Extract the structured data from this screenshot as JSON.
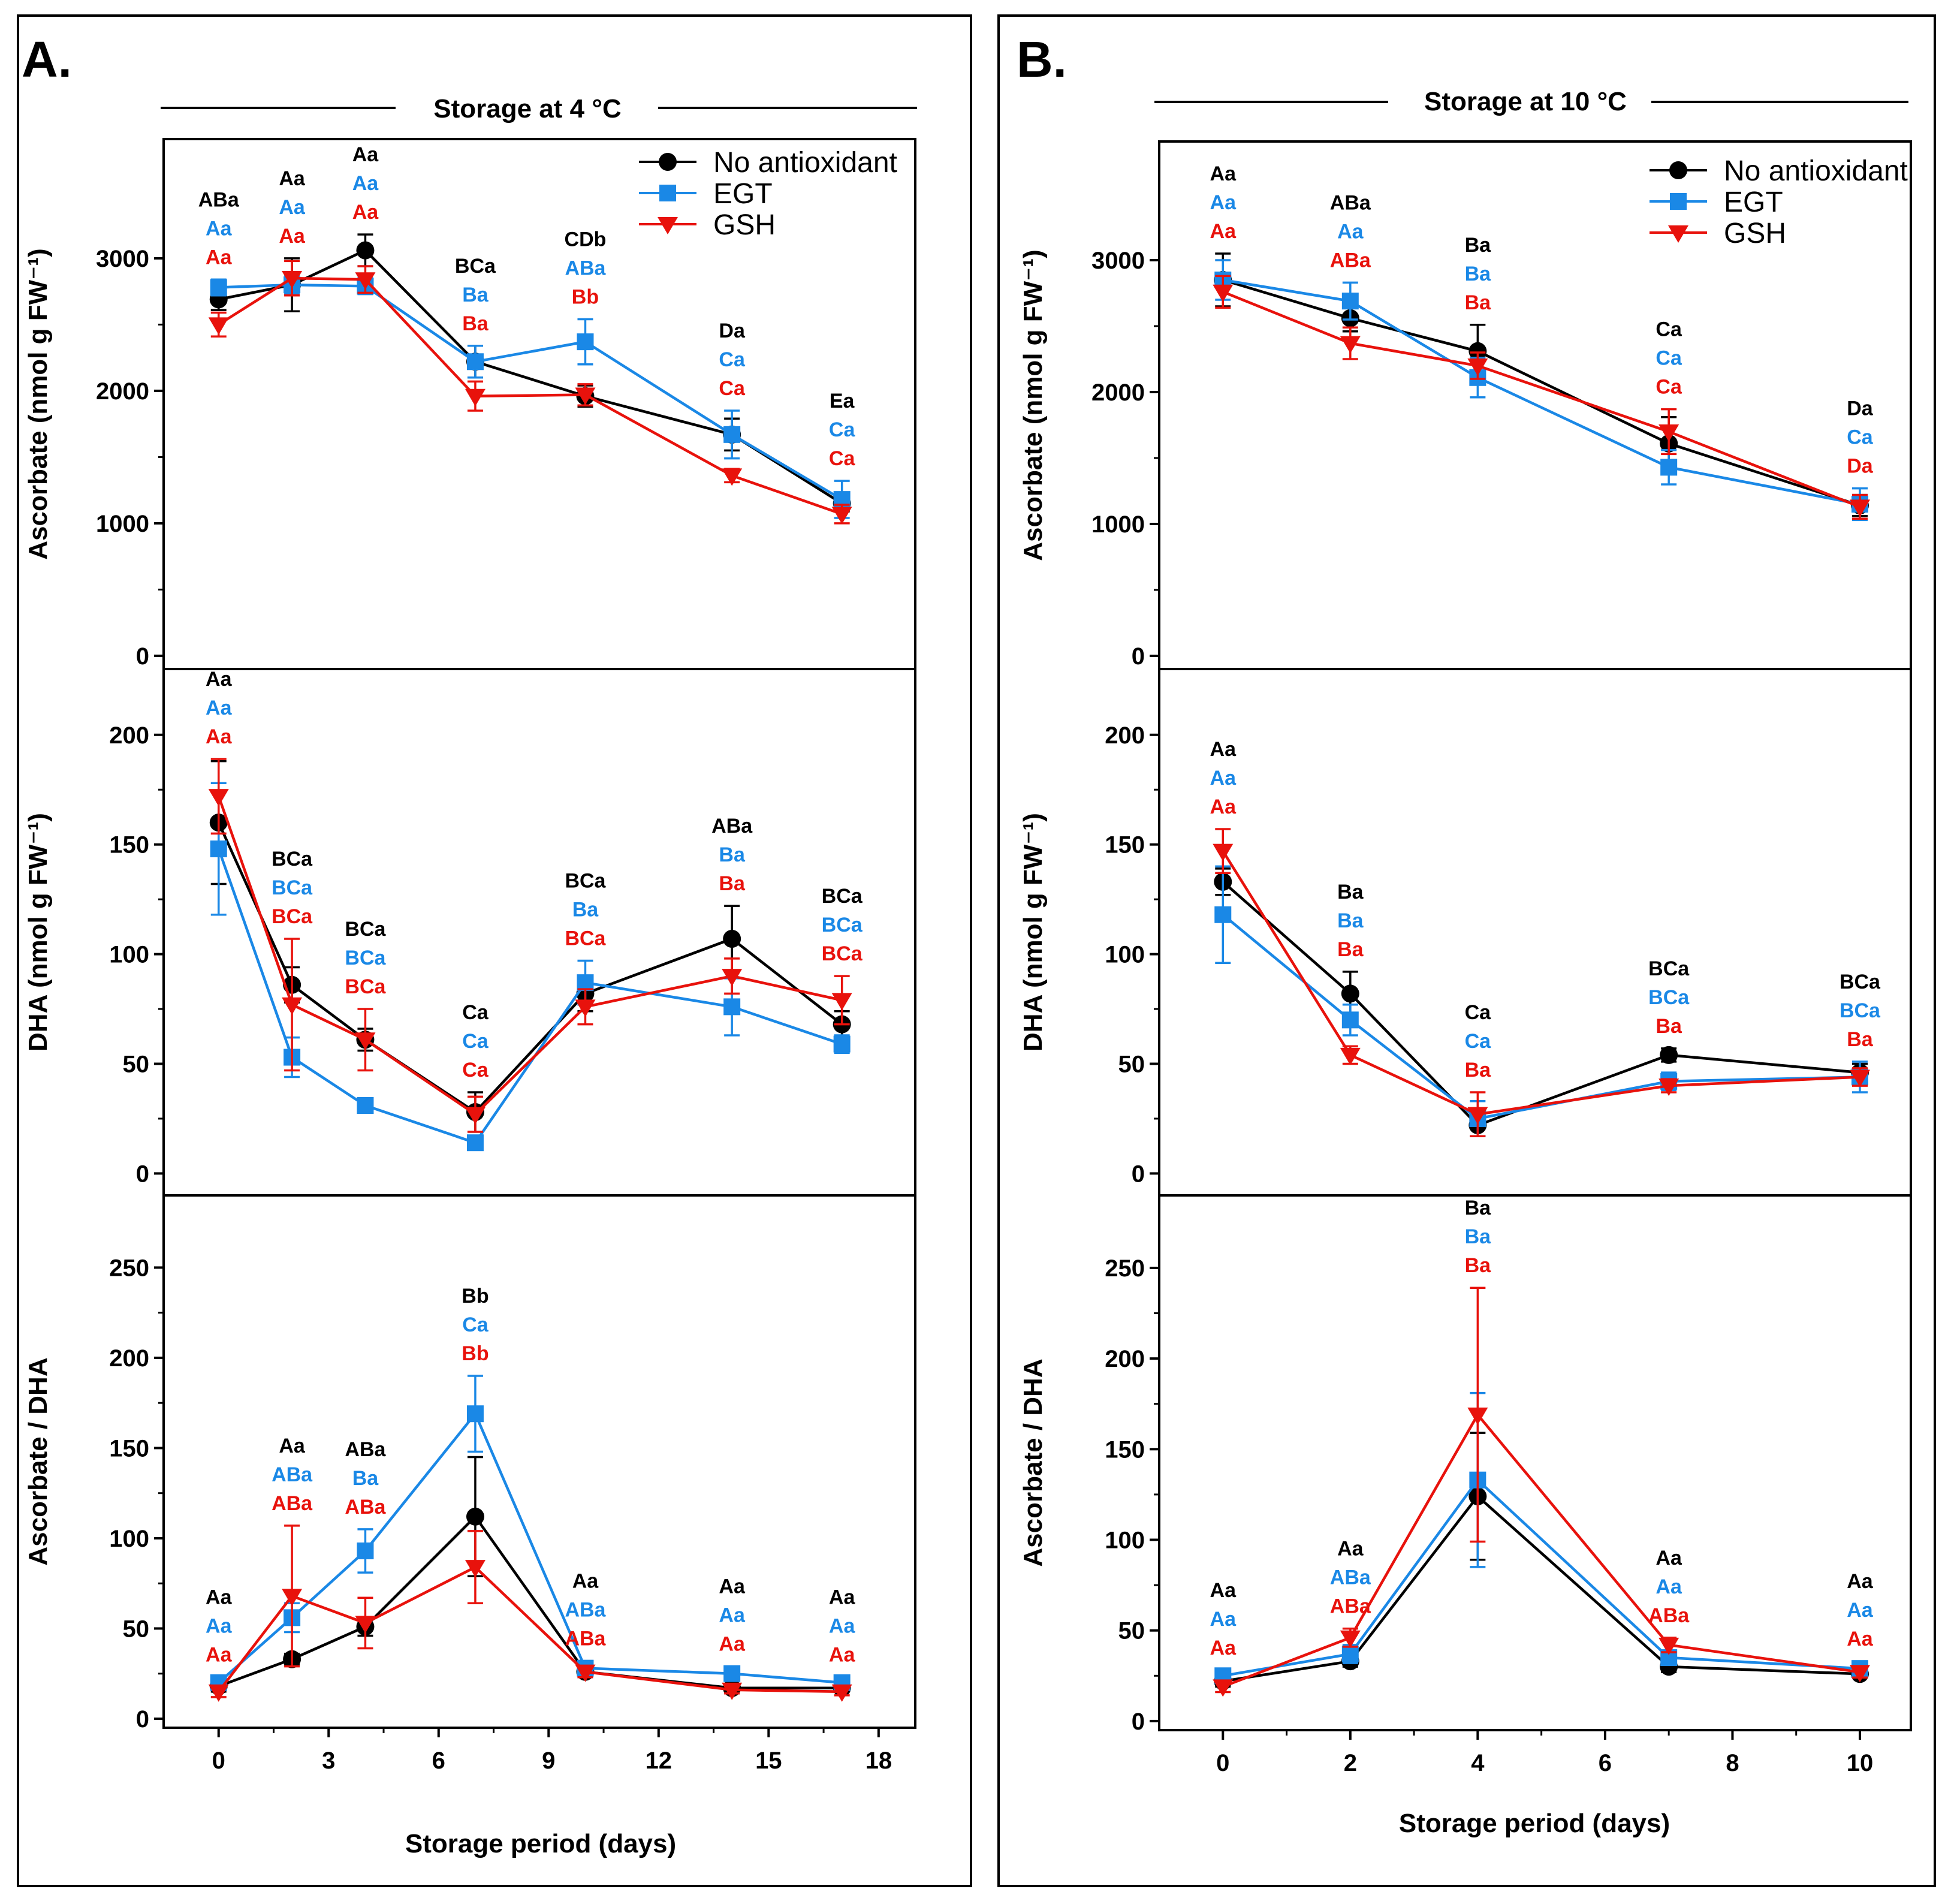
{
  "figure": {
    "colors": {
      "no_antioxidant": "#000000",
      "egt": "#1a88e6",
      "gsh": "#e8120c"
    }
  },
  "panels": [
    {
      "id": "A",
      "letter": "A.",
      "storage_title": "Storage at 4 °C",
      "xlabel": "Storage period (days)",
      "xlim": [
        -1.5,
        19.0
      ],
      "xticks": [
        0,
        3,
        6,
        9,
        12,
        15,
        18
      ],
      "x_tick_labels": [
        "0",
        "3",
        "6",
        "9",
        "12",
        "15",
        "18"
      ],
      "legend": [
        "No antioxidant",
        "EGT",
        "GSH"
      ]
    },
    {
      "id": "B",
      "letter": "B.",
      "storage_title": "Storage at 10 °C",
      "xlabel": "Storage period (days)",
      "xlim": [
        -1.0,
        10.8
      ],
      "xticks": [
        0,
        2,
        4,
        6,
        8,
        10
      ],
      "x_tick_labels": [
        "0",
        "2",
        "4",
        "6",
        "8",
        "10"
      ],
      "legend": [
        "No antioxidant",
        "EGT",
        "GSH"
      ]
    }
  ],
  "chart_data": [
    {
      "type": "line",
      "panel": "A",
      "row": 0,
      "title": "Storage at 4 °C",
      "ylabel": "Ascorbate (nmol g FW⁻¹)",
      "xlabel": "",
      "ylim": [
        -100,
        3900
      ],
      "yticks": [
        0,
        1000,
        2000,
        3000
      ],
      "y_tick_labels": [
        "0",
        "1000",
        "2000",
        "3000"
      ],
      "x": [
        0,
        2,
        4,
        7,
        10,
        14,
        17
      ],
      "series": [
        {
          "name": "No antioxidant",
          "values": [
            2690,
            2800,
            3060,
            2220,
            1960,
            1670,
            1150
          ],
          "errors": [
            80,
            200,
            120,
            120,
            80,
            120,
            60
          ]
        },
        {
          "name": "EGT",
          "values": [
            2780,
            2800,
            2790,
            2220,
            2370,
            1670,
            1180
          ],
          "errors": [
            60,
            70,
            60,
            120,
            170,
            180,
            140
          ]
        },
        {
          "name": "GSH",
          "values": [
            2500,
            2850,
            2840,
            1960,
            1970,
            1360,
            1070
          ],
          "errors": [
            90,
            130,
            100,
            110,
            80,
            50,
            70
          ]
        }
      ],
      "letters": [
        [
          "ABa",
          "Aa",
          "Aa"
        ],
        [
          "Aa",
          "Aa",
          "Aa"
        ],
        [
          "Aa",
          "Aa",
          "Aa"
        ],
        [
          "BCa",
          "Ba",
          "Ba"
        ],
        [
          "CDb",
          "ABa",
          "Bb"
        ],
        [
          "Da",
          "Ca",
          "Ca"
        ],
        [
          "Ea",
          "Ca",
          "Ca"
        ]
      ]
    },
    {
      "type": "line",
      "panel": "A",
      "row": 1,
      "ylabel": "DHA  (nmol g FW⁻¹)",
      "xlabel": "",
      "ylim": [
        -10,
        230
      ],
      "yticks": [
        0,
        50,
        100,
        150,
        200
      ],
      "y_tick_labels": [
        "0",
        "50",
        "100",
        "150",
        "200"
      ],
      "x": [
        0,
        2,
        4,
        7,
        10,
        14,
        17
      ],
      "series": [
        {
          "name": "No antioxidant",
          "values": [
            160,
            86,
            61,
            28,
            82,
            107,
            68
          ],
          "errors": [
            28,
            8,
            5,
            9,
            8,
            15,
            6
          ]
        },
        {
          "name": "EGT",
          "values": [
            148,
            53,
            31,
            14,
            87,
            76,
            59
          ],
          "errors": [
            30,
            9,
            3,
            3,
            10,
            13,
            4
          ]
        },
        {
          "name": "GSH",
          "values": [
            172,
            77,
            61,
            27,
            76,
            90,
            79
          ],
          "errors": [
            17,
            30,
            14,
            8,
            8,
            8,
            11
          ]
        }
      ],
      "letters": [
        [
          "Aa",
          "Aa",
          "Aa"
        ],
        [
          "BCa",
          "BCa",
          "BCa"
        ],
        [
          "BCa",
          "BCa",
          "BCa"
        ],
        [
          "Ca",
          "Ca",
          "Ca"
        ],
        [
          "BCa",
          "Ba",
          "BCa"
        ],
        [
          "ABa",
          "Ba",
          "Ba"
        ],
        [
          "BCa",
          "BCa",
          "BCa"
        ]
      ]
    },
    {
      "type": "line",
      "panel": "A",
      "row": 2,
      "ylabel": "Ascorbate / DHA",
      "xlabel": "Storage period (days)",
      "ylim": [
        -5,
        290
      ],
      "yticks": [
        0,
        50,
        100,
        150,
        200,
        250
      ],
      "y_tick_labels": [
        "0",
        "50",
        "100",
        "150",
        "200",
        "250"
      ],
      "x": [
        0,
        2,
        4,
        7,
        10,
        14,
        17
      ],
      "series": [
        {
          "name": "No antioxidant",
          "values": [
            18,
            33,
            51,
            112,
            26,
            17,
            17
          ],
          "errors": [
            3,
            3,
            5,
            33,
            3,
            2,
            2
          ]
        },
        {
          "name": "EGT",
          "values": [
            20,
            56,
            93,
            169,
            28,
            25,
            20
          ],
          "errors": [
            3,
            8,
            12,
            21,
            4,
            4,
            3
          ]
        },
        {
          "name": "GSH",
          "values": [
            15,
            68,
            53,
            84,
            26,
            16,
            15
          ],
          "errors": [
            3,
            39,
            14,
            20,
            3,
            2,
            2
          ]
        }
      ],
      "letters": [
        [
          "Aa",
          "Aa",
          "Aa"
        ],
        [
          "Aa",
          "ABa",
          "ABa"
        ],
        [
          "ABa",
          "Ba",
          "ABa"
        ],
        [
          "Bb",
          "Ca",
          "Bb"
        ],
        [
          "Aa",
          "ABa",
          "ABa"
        ],
        [
          "Aa",
          "Aa",
          "Aa"
        ],
        [
          "Aa",
          "Aa",
          "Aa"
        ]
      ]
    },
    {
      "type": "line",
      "panel": "B",
      "row": 0,
      "title": "Storage at 10 °C",
      "ylabel": "Ascorbate (nmol g FW⁻¹)",
      "xlabel": "",
      "ylim": [
        -100,
        3900
      ],
      "yticks": [
        0,
        1000,
        2000,
        3000
      ],
      "y_tick_labels": [
        "0",
        "1000",
        "2000",
        "3000"
      ],
      "x": [
        0,
        2,
        4,
        7,
        10
      ],
      "series": [
        {
          "name": "No antioxidant",
          "values": [
            2850,
            2560,
            2310,
            1610,
            1140
          ],
          "errors": [
            200,
            100,
            200,
            200,
            80
          ]
        },
        {
          "name": "EGT",
          "values": [
            2850,
            2690,
            2110,
            1430,
            1150
          ],
          "errors": [
            150,
            140,
            150,
            130,
            120
          ]
        },
        {
          "name": "GSH",
          "values": [
            2760,
            2370,
            2200,
            1700,
            1130
          ],
          "errors": [
            120,
            120,
            100,
            170,
            90
          ]
        }
      ],
      "letters": [
        [
          "Aa",
          "Aa",
          "Aa"
        ],
        [
          "ABa",
          "Aa",
          "ABa"
        ],
        [
          "Ba",
          "Ba",
          "Ba"
        ],
        [
          "Ca",
          "Ca",
          "Ca"
        ],
        [
          "Da",
          "Ca",
          "Da"
        ]
      ]
    },
    {
      "type": "line",
      "panel": "B",
      "row": 1,
      "ylabel": "DHA (nmol g FW⁻¹)",
      "xlabel": "",
      "ylim": [
        -10,
        230
      ],
      "yticks": [
        0,
        50,
        100,
        150,
        200
      ],
      "y_tick_labels": [
        "0",
        "50",
        "100",
        "150",
        "200"
      ],
      "x": [
        0,
        2,
        4,
        7,
        10
      ],
      "series": [
        {
          "name": "No antioxidant",
          "values": [
            133,
            82,
            22,
            54,
            46
          ],
          "errors": [
            6,
            10,
            5,
            3,
            4
          ]
        },
        {
          "name": "EGT",
          "values": [
            118,
            70,
            25,
            42,
            44
          ],
          "errors": [
            22,
            7,
            8,
            4,
            7
          ]
        },
        {
          "name": "GSH",
          "values": [
            147,
            54,
            27,
            40,
            44
          ],
          "errors": [
            10,
            4,
            10,
            3,
            4
          ]
        }
      ],
      "letters": [
        [
          "Aa",
          "Aa",
          "Aa"
        ],
        [
          "Ba",
          "Ba",
          "Ba"
        ],
        [
          "Ca",
          "Ca",
          "Ba"
        ],
        [
          "BCa",
          "BCa",
          "Ba"
        ],
        [
          "BCa",
          "BCa",
          "Ba"
        ]
      ]
    },
    {
      "type": "line",
      "panel": "B",
      "row": 2,
      "ylabel": "Ascorbate / DHA",
      "xlabel": "Storage period (days)",
      "ylim": [
        -5,
        290
      ],
      "yticks": [
        0,
        50,
        100,
        150,
        200,
        250
      ],
      "y_tick_labels": [
        "0",
        "50",
        "100",
        "150",
        "200",
        "250"
      ],
      "x": [
        0,
        2,
        4,
        7,
        10
      ],
      "series": [
        {
          "name": "No antioxidant",
          "values": [
            22,
            33,
            124,
            30,
            26
          ],
          "errors": [
            3,
            3,
            35,
            3,
            2
          ]
        },
        {
          "name": "EGT",
          "values": [
            25,
            37,
            133,
            35,
            29
          ],
          "errors": [
            3,
            5,
            48,
            4,
            4
          ]
        },
        {
          "name": "GSH",
          "values": [
            19,
            46,
            169,
            42,
            27
          ],
          "errors": [
            3,
            5,
            70,
            4,
            3
          ]
        }
      ],
      "letters": [
        [
          "Aa",
          "Aa",
          "Aa"
        ],
        [
          "Aa",
          "ABa",
          "ABa"
        ],
        [
          "Ba",
          "Ba",
          "Ba"
        ],
        [
          "Aa",
          "Aa",
          "ABa"
        ],
        [
          "Aa",
          "Aa",
          "Aa"
        ]
      ]
    }
  ]
}
